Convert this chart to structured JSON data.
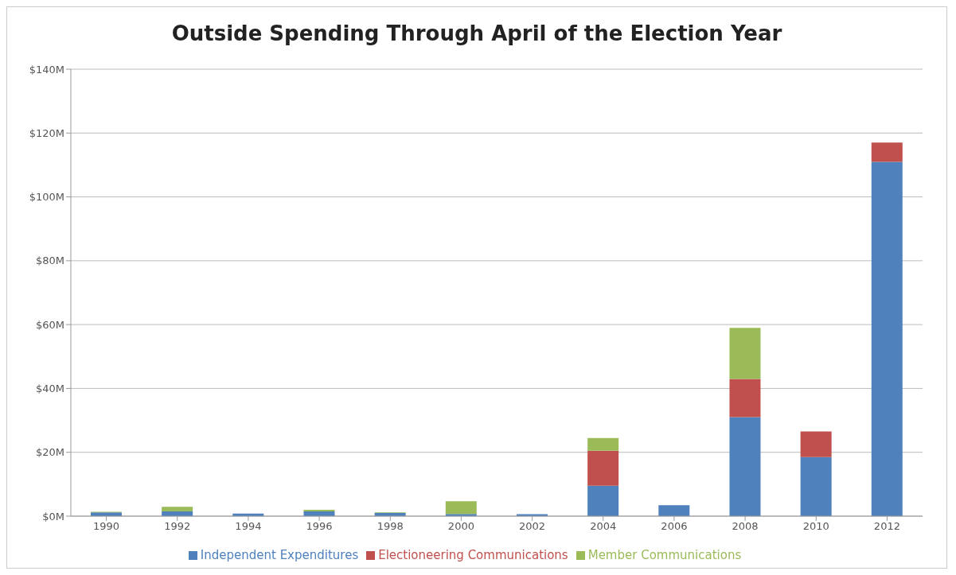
{
  "chart_data": {
    "type": "bar",
    "title": "Outside Spending Through April of the Election Year",
    "stacked": true,
    "categories": [
      "1990",
      "1992",
      "1994",
      "1996",
      "1998",
      "2000",
      "2002",
      "2004",
      "2006",
      "2008",
      "2010",
      "2012"
    ],
    "series": [
      {
        "name": "Independent Expenditures",
        "color": "#4f81bd",
        "values": [
          1.2,
          1.5,
          0.8,
          1.5,
          1.0,
          0.7,
          0.6,
          9.5,
          3.4,
          31,
          18.5,
          111
        ]
      },
      {
        "name": "Electioneering Communications",
        "color": "#c0504d",
        "values": [
          null,
          null,
          null,
          null,
          null,
          null,
          null,
          11,
          null,
          12,
          8,
          6
        ]
      },
      {
        "name": "Member Communications",
        "color": "#9bbb59",
        "values": [
          0.2,
          1.4,
          null,
          0.5,
          0.2,
          4.0,
          null,
          4,
          null,
          16,
          null,
          null
        ]
      }
    ],
    "ylim": [
      0,
      140
    ],
    "yticks": [
      {
        "value": 0,
        "label": "$0M"
      },
      {
        "value": 20,
        "label": "$20M"
      },
      {
        "value": 40,
        "label": "$40M"
      },
      {
        "value": 60,
        "label": "$60M"
      },
      {
        "value": 80,
        "label": "$80M"
      },
      {
        "value": 100,
        "label": "$100M"
      },
      {
        "value": 120,
        "label": "$120M"
      },
      {
        "value": 140,
        "label": "$140M"
      }
    ],
    "grid": "y",
    "legend": "bottom"
  }
}
